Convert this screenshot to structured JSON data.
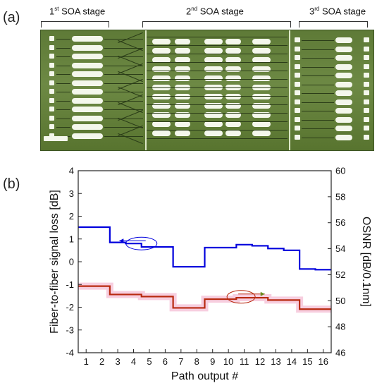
{
  "figure": {
    "panel_a_label": "(a)",
    "panel_b_label": "(b)",
    "stages": [
      {
        "ordinal": "1",
        "suffix": "st",
        "text": " SOA stage"
      },
      {
        "ordinal": "2",
        "suffix": "nd",
        "text": " SOA stage"
      },
      {
        "ordinal": "3",
        "suffix": "rd",
        "text": " SOA stage"
      }
    ]
  },
  "chart_data": {
    "type": "line",
    "step": true,
    "title": "",
    "xlabel": "Path output #",
    "ylabel_left": "Fiber-to-fiber signal loss [dB]",
    "ylabel_right": "OSNR [dB/0.1nm]",
    "x": [
      1,
      2,
      3,
      4,
      5,
      6,
      7,
      8,
      9,
      10,
      11,
      12,
      13,
      14,
      15,
      16
    ],
    "xlim": [
      0.5,
      16.5
    ],
    "ylim_left": [
      -4,
      4
    ],
    "ylim_right": [
      46,
      60
    ],
    "yticks_left": [
      -4,
      -3,
      -2,
      -1,
      0,
      1,
      2,
      3,
      4
    ],
    "yticks_right": [
      46,
      48,
      50,
      52,
      54,
      56,
      58,
      60
    ],
    "series": [
      {
        "axis": "left",
        "color": "#0000dd",
        "values": [
          1.52,
          1.52,
          0.85,
          0.8,
          0.65,
          0.65,
          -0.22,
          -0.22,
          0.62,
          0.62,
          0.75,
          0.7,
          0.58,
          0.5,
          -0.32,
          -0.35
        ]
      },
      {
        "axis": "right",
        "color": "#b82a10",
        "band_color": "#f6c9dc",
        "values": [
          51.12,
          51.12,
          50.48,
          50.48,
          50.32,
          50.32,
          49.45,
          49.45,
          50.12,
          50.12,
          50.23,
          50.23,
          50.05,
          50.05,
          49.35,
          49.35
        ]
      }
    ],
    "grid": false,
    "legend": "none"
  }
}
